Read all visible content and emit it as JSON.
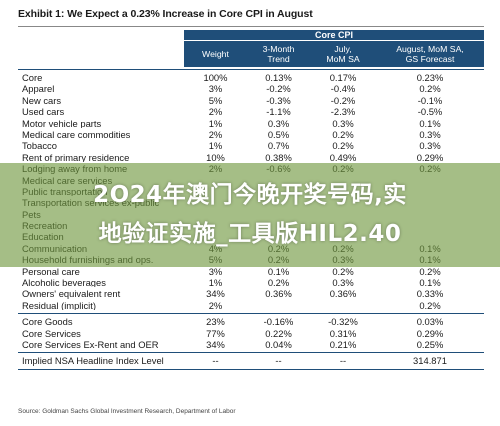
{
  "title": "Exhibit 1: We Expect a 0.23% Increase in Core CPI in August",
  "group_header": "Core CPI",
  "columns": [
    "Weight",
    "3-Month\nTrend",
    "July,\nMoM SA",
    "August, MoM SA,\nGS Forecast"
  ],
  "rows": [
    [
      "Core",
      "100%",
      "0.13%",
      "0.17%",
      "0.23%"
    ],
    [
      "Apparel",
      "3%",
      "-0.2%",
      "-0.4%",
      "0.2%"
    ],
    [
      "New cars",
      "5%",
      "-0.3%",
      "-0.2%",
      "-0.1%"
    ],
    [
      "Used cars",
      "2%",
      "-1.1%",
      "-2.3%",
      "-0.5%"
    ],
    [
      "Motor vehicle parts",
      "1%",
      "0.3%",
      "0.3%",
      "0.1%"
    ],
    [
      "Medical care commodities",
      "2%",
      "0.5%",
      "0.2%",
      "0.3%"
    ],
    [
      "Tobacco",
      "1%",
      "0.7%",
      "0.2%",
      "0.3%"
    ],
    [
      "Rent of primary residence",
      "10%",
      "0.38%",
      "0.49%",
      "0.29%"
    ],
    [
      "Lodging away from home",
      "2%",
      "-0.6%",
      "0.2%",
      "0.2%"
    ],
    [
      "Medical care services",
      "",
      "",
      "",
      ""
    ],
    [
      "Public transportation",
      "",
      "",
      "",
      ""
    ],
    [
      "Transportation services ex-public",
      "",
      "",
      "",
      ""
    ],
    [
      "Pets",
      "",
      "",
      "",
      ""
    ],
    [
      "Recreation",
      "",
      "",
      "",
      ""
    ],
    [
      "Education",
      "",
      "",
      "",
      ""
    ],
    [
      "Communication",
      "4%",
      "0.2%",
      "0.2%",
      "0.1%"
    ],
    [
      "Household furnishings and ops.",
      "5%",
      "0.2%",
      "0.3%",
      "0.1%"
    ],
    [
      "Personal care",
      "3%",
      "0.1%",
      "0.2%",
      "0.2%"
    ],
    [
      "Alcoholic beverages",
      "1%",
      "0.2%",
      "0.3%",
      "0.1%"
    ],
    [
      "Owners' equivalent rent",
      "34%",
      "0.36%",
      "0.36%",
      "0.33%"
    ],
    [
      "Residual (implicit)",
      "2%",
      "",
      "",
      "0.2%"
    ]
  ],
  "summary_rows": [
    [
      "Core Goods",
      "23%",
      "-0.16%",
      "-0.32%",
      "0.03%"
    ],
    [
      "Core Services",
      "77%",
      "0.22%",
      "0.31%",
      "0.29%"
    ],
    [
      "Core Services Ex-Rent and OER",
      "34%",
      "0.04%",
      "0.21%",
      "0.25%"
    ]
  ],
  "nsa_row": [
    "Implied NSA Headline Index Level",
    "--",
    "--",
    "--",
    "314.871"
  ],
  "source": "Source: Goldman Sachs Global Investment Research, Department of Labor",
  "banner_line1": "2O24年澳门今晚开奖号码,实",
  "banner_line2": "地验证实施_工具版HIL2.40"
}
